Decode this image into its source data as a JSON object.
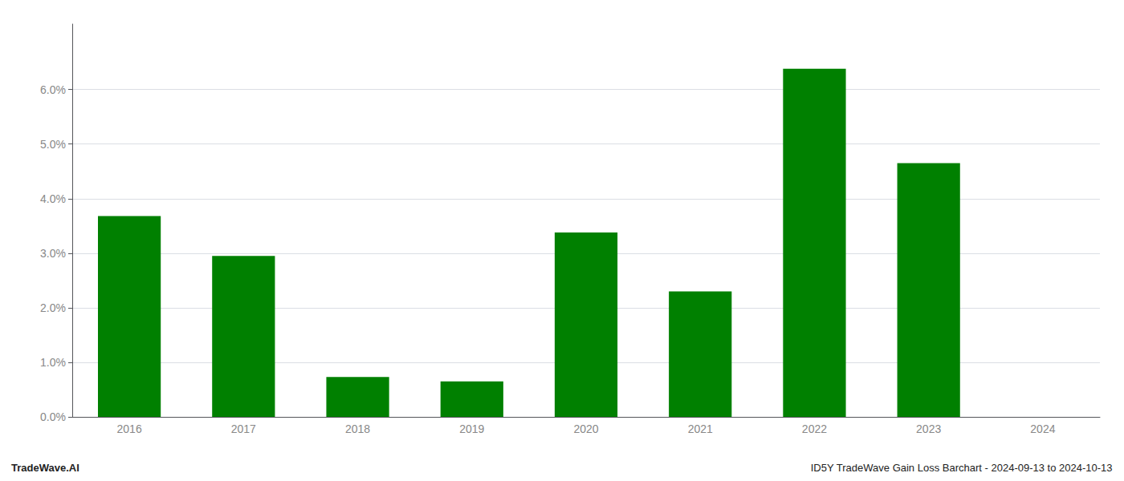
{
  "chart_data": {
    "type": "bar",
    "categories": [
      "2016",
      "2017",
      "2018",
      "2019",
      "2020",
      "2021",
      "2022",
      "2023",
      "2024"
    ],
    "values": [
      0.0368,
      0.0295,
      0.0073,
      0.0065,
      0.0338,
      0.023,
      0.0638,
      0.0465,
      0.0
    ],
    "color": "#008000",
    "ylim": [
      0,
      0.072
    ],
    "yticks": [
      {
        "value": 0.0,
        "label": "0.0%"
      },
      {
        "value": 0.01,
        "label": "1.0%"
      },
      {
        "value": 0.02,
        "label": "2.0%"
      },
      {
        "value": 0.03,
        "label": "3.0%"
      },
      {
        "value": 0.04,
        "label": "4.0%"
      },
      {
        "value": 0.05,
        "label": "5.0%"
      },
      {
        "value": 0.06,
        "label": "6.0%"
      }
    ],
    "grid": true,
    "annotations": [
      "TradeWave.AI",
      "ID5Y TradeWave Gain Loss Barchart - 2024-09-13 to 2024-10-13"
    ]
  }
}
